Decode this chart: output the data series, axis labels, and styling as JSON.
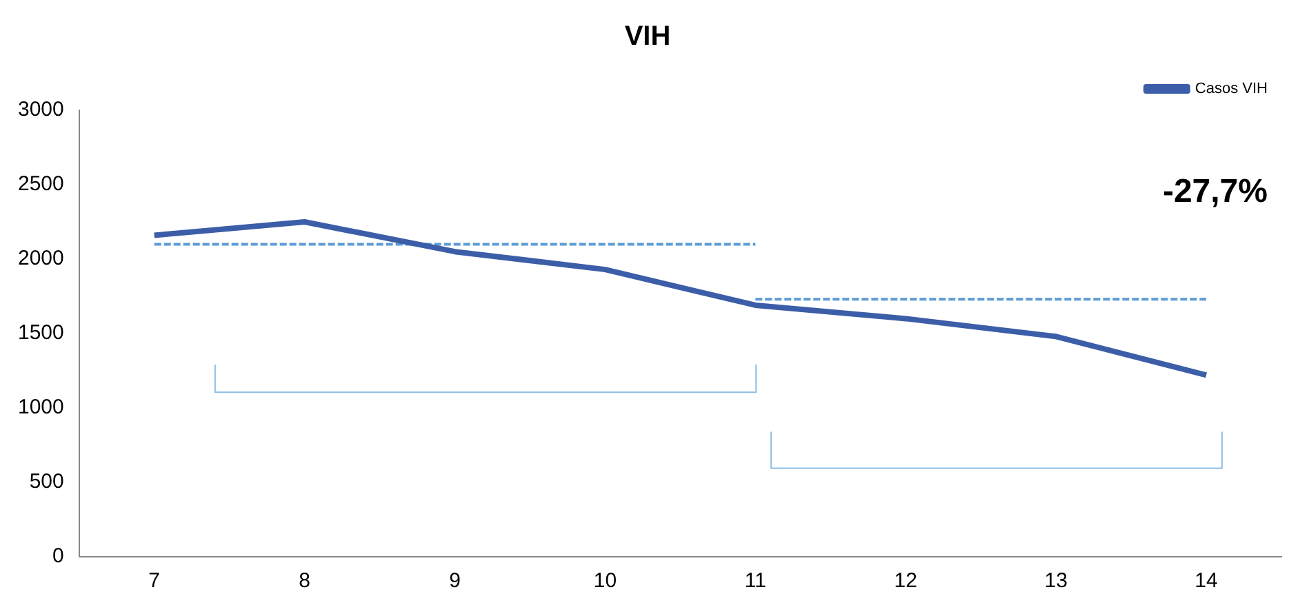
{
  "chart_data": {
    "type": "line",
    "title": "VIH",
    "categories": [
      "7",
      "8",
      "9",
      "10",
      "11",
      "12",
      "13",
      "14"
    ],
    "series": [
      {
        "name": "Casos VIH",
        "color": "#3c5ea8",
        "values": [
          2160,
          2250,
          2050,
          1930,
          1690,
          1600,
          1480,
          1220
        ]
      },
      {
        "color": "#5b9bd5",
        "line_style": "dashed",
        "values": [
          2100,
          2100,
          2100,
          2100,
          2100,
          null,
          null,
          null
        ]
      },
      {
        "color": "#5b9bd5",
        "line_style": "dashed",
        "values": [
          null,
          null,
          null,
          null,
          1730,
          1730,
          1730,
          1730
        ]
      }
    ],
    "ylim": [
      0,
      3000
    ],
    "yticks": [
      0,
      500,
      1000,
      1500,
      2000,
      2500,
      3000
    ],
    "grid": false,
    "legend": "top right",
    "marker": "none",
    "annotations": [
      "-27,7%"
    ]
  }
}
